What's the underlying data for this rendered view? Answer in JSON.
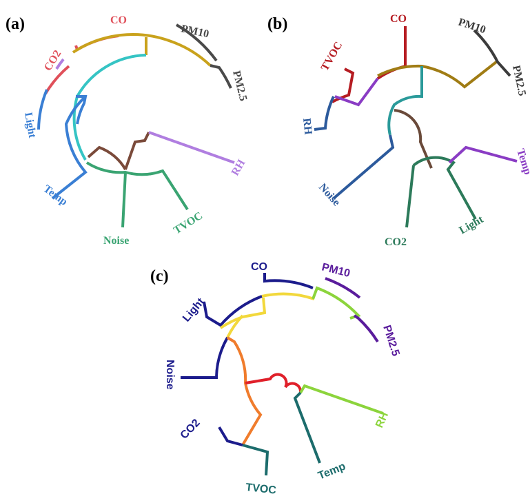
{
  "panels": {
    "a": {
      "label": "(a)",
      "leaves": [
        "CO",
        "CO2",
        "PM10",
        "PM2.5",
        "Light",
        "RH",
        "Temp",
        "Noise",
        "TVOC"
      ]
    },
    "b": {
      "label": "(b)",
      "leaves": [
        "CO",
        "TVOC",
        "PM10",
        "PM2.5",
        "RH",
        "Temp",
        "Noise",
        "CO2",
        "Light"
      ]
    },
    "c": {
      "label": "(c)",
      "leaves": [
        "CO",
        "PM10",
        "Light",
        "PM2.5",
        "Noise",
        "RH",
        "CO2",
        "Temp",
        "TVOC"
      ]
    }
  },
  "colors": {
    "a_red": "#e0505a",
    "a_lilac": "#b07ee0",
    "a_gold": "#c9a21c",
    "a_gray": "#4a4a4a",
    "a_blue": "#3a7fd4",
    "a_cyan": "#35c4c4",
    "a_brown": "#7a4a3a",
    "a_green": "#3aa472",
    "b_red": "#b51c22",
    "b_olive": "#a07c14",
    "b_dark": "#3c3c3c",
    "b_purple": "#8a3cc4",
    "b_navy": "#2c5a9c",
    "b_teal": "#2a9a9a",
    "b_brown": "#6a4a3a",
    "b_green": "#2c7a5a",
    "c_navy": "#1c1c8c",
    "c_purple": "#5a1c9c",
    "c_yellow": "#f2d83c",
    "c_lime": "#8cd43c",
    "c_orange": "#f07c2c",
    "c_red": "#e0202a",
    "c_teal": "#1c6c6c"
  }
}
